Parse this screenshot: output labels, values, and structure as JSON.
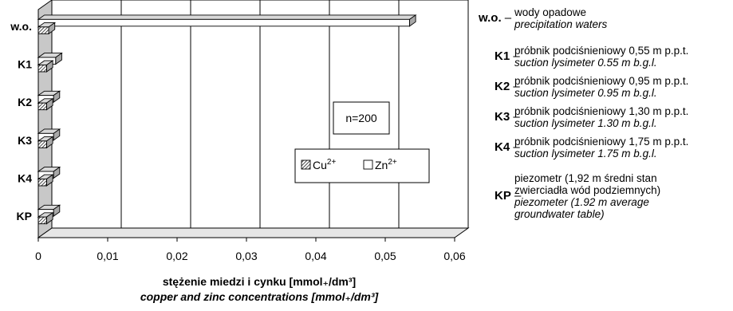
{
  "chart_data": {
    "type": "bar",
    "orientation": "horizontal",
    "categories": [
      "w.o.",
      "K1",
      "K2",
      "K3",
      "K4",
      "KP"
    ],
    "series": [
      {
        "name": "Cu2+",
        "values": [
          0.0015,
          0.0012,
          0.0012,
          0.0012,
          0.0012,
          0.0012
        ],
        "pattern": "hatched"
      },
      {
        "name": "Zn2+",
        "values": [
          0.0535,
          0.0025,
          0.0022,
          0.0022,
          0.0022,
          0.0022
        ],
        "pattern": "white"
      }
    ],
    "xlim": [
      0,
      0.06
    ],
    "xticks": [
      "0",
      "0,01",
      "0,02",
      "0,03",
      "0,04",
      "0,05",
      "0,06"
    ],
    "grid": true,
    "legend": {
      "position": "inside-right",
      "items": [
        "Cu",
        "Zn"
      ],
      "superscript": "2+"
    },
    "annotation": "n=200",
    "xlabel_pl": "stężenie miedzi i cynku [mmol₊/dm³]",
    "xlabel_en": "copper and zinc concentrations [mmol₊/dm³]",
    "colors": {
      "wall": "#c8c8c8",
      "grid": "#000000",
      "bar_fill": "#ffffff",
      "bar_top": "#d8d8d8",
      "bar_side": "#a8a8a8"
    }
  },
  "legend_panel": [
    {
      "code": "w.o.",
      "pl": "wody opadowe",
      "en": "precipitation waters"
    },
    {
      "code": "K1",
      "pl": "próbnik podciśnieniowy 0,55 m p.p.t.",
      "en": "suction lysimeter 0.55 m b.g.l."
    },
    {
      "code": "K2",
      "pl": "próbnik podciśnieniowy 0,95 m p.p.t.",
      "en": "suction lysimeter 0.95 m b.g.l."
    },
    {
      "code": "K3",
      "pl": "próbnik podciśnieniowy 1,30 m p.p.t.",
      "en": "suction lysimeter 1.30 m b.g.l."
    },
    {
      "code": "K4",
      "pl": "próbnik podciśnieniowy 1,75 m p.p.t.",
      "en": "suction lysimeter 1.75 m b.g.l."
    },
    {
      "code": "KP",
      "pl": [
        "piezometr (1,92 m średni stan",
        "zwierciadła wód podziemnych)"
      ],
      "en": [
        "piezometer (1.92 m average",
        "groundwater table)"
      ]
    }
  ]
}
